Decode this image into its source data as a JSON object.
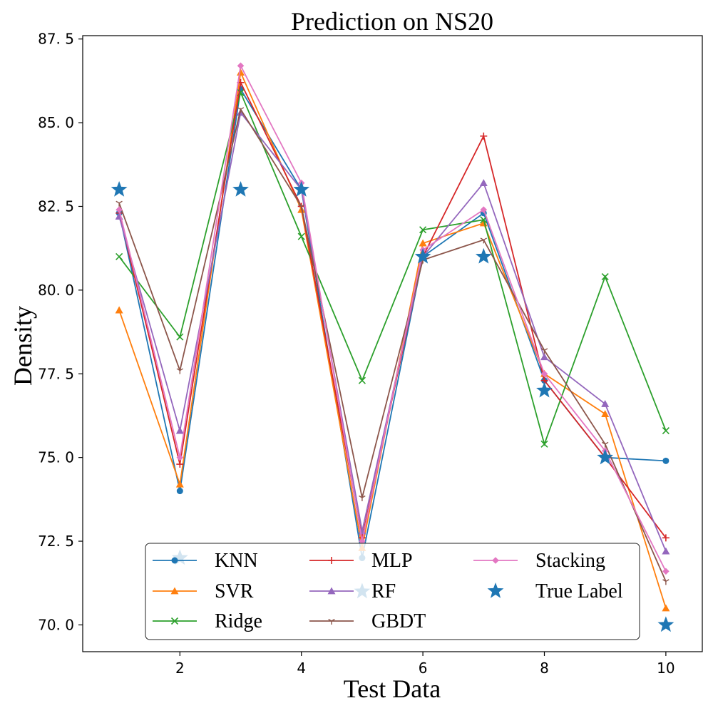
{
  "chart_data": {
    "type": "line",
    "title": "Prediction on NS20",
    "xlabel": "Test Data",
    "ylabel": "Density",
    "xlim": [
      0.4,
      10.6
    ],
    "ylim": [
      69.2,
      87.6
    ],
    "xticks": [
      2,
      4,
      6,
      8,
      10
    ],
    "xtick_labels": [
      "2",
      "4",
      "6",
      "8",
      "10"
    ],
    "yticks": [
      70.0,
      72.5,
      75.0,
      77.5,
      80.0,
      82.5,
      85.0,
      87.5
    ],
    "ytick_labels": [
      "70. 0",
      "72. 5",
      "75. 0",
      "77. 5",
      "80. 0",
      "82. 5",
      "85. 0",
      "87. 5"
    ],
    "grid": false,
    "legend_position": "lower-center",
    "legend_columns": 3,
    "x": [
      1,
      2,
      3,
      4,
      5,
      6,
      7,
      8,
      9,
      10
    ],
    "series": [
      {
        "name": "KNN",
        "color": "#1f77b4",
        "marker": "circle",
        "values": [
          82.3,
          74.0,
          86.0,
          83.0,
          72.0,
          81.0,
          82.3,
          77.3,
          75.0,
          74.9
        ]
      },
      {
        "name": "SVR",
        "color": "#ff7f0e",
        "marker": "triangle",
        "values": [
          79.4,
          74.2,
          86.5,
          82.4,
          72.3,
          81.4,
          82.0,
          77.5,
          76.3,
          70.5
        ]
      },
      {
        "name": "Ridge",
        "color": "#2ca02c",
        "marker": "x",
        "values": [
          81.0,
          78.6,
          85.9,
          81.6,
          77.3,
          81.8,
          82.1,
          75.4,
          80.4,
          75.8
        ]
      },
      {
        "name": "MLP",
        "color": "#d62728",
        "marker": "plus",
        "values": [
          82.3,
          74.8,
          86.2,
          82.5,
          72.6,
          81.0,
          84.6,
          77.3,
          75.0,
          72.6
        ]
      },
      {
        "name": "RF",
        "color": "#9467bd",
        "marker": "triangle",
        "values": [
          82.2,
          75.8,
          85.3,
          83.0,
          72.8,
          81.0,
          83.2,
          78.0,
          76.6,
          72.2
        ]
      },
      {
        "name": "GBDT",
        "color": "#8c564b",
        "marker": "tri",
        "values": [
          82.6,
          77.6,
          85.4,
          82.5,
          73.8,
          80.9,
          81.5,
          78.2,
          75.4,
          71.3
        ]
      },
      {
        "name": "Stacking",
        "color": "#e377c2",
        "marker": "diamond",
        "values": [
          82.4,
          75.0,
          86.7,
          83.2,
          72.5,
          81.2,
          82.4,
          77.5,
          75.2,
          71.6
        ]
      },
      {
        "name": "True Label",
        "color": "#1f77b4",
        "marker": "star",
        "scatter": true,
        "values": [
          83.0,
          72.0,
          83.0,
          83.0,
          71.0,
          81.0,
          81.0,
          77.0,
          75.0,
          70.0
        ]
      }
    ]
  }
}
